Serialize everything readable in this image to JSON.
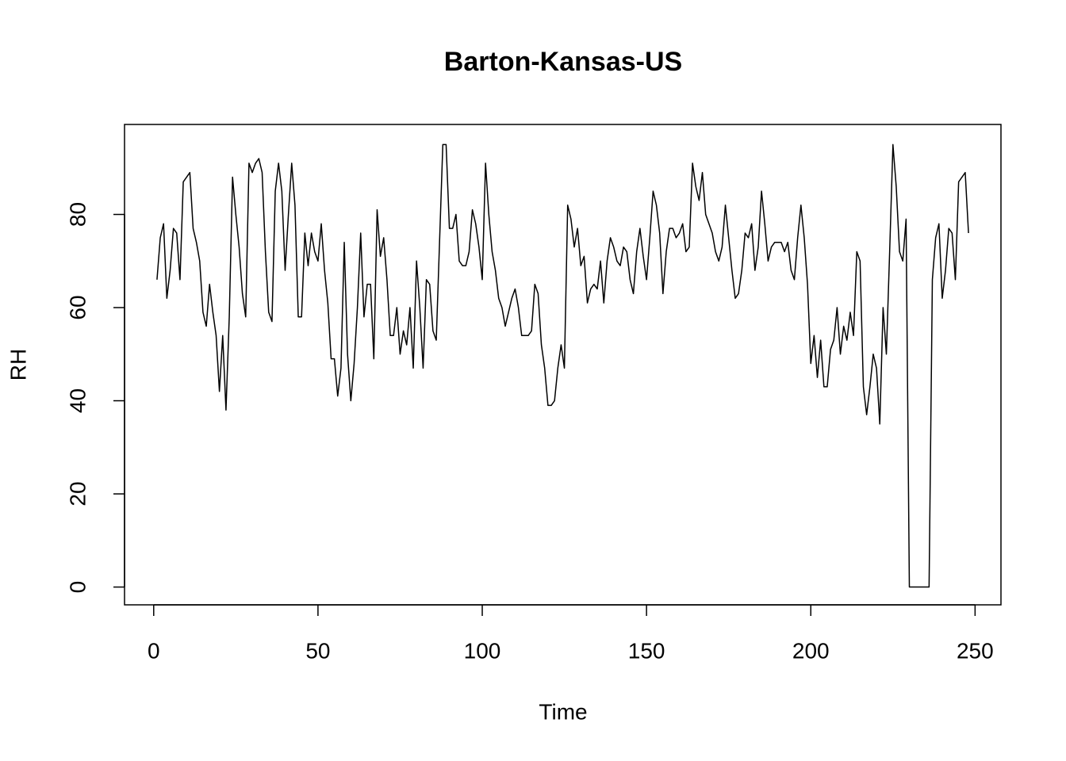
{
  "chart_data": {
    "type": "line",
    "title": "Barton-Kansas-US",
    "x_label": "Time",
    "y_label": "RH",
    "x": [
      1,
      2,
      3,
      4,
      5,
      6,
      7,
      8,
      9,
      10,
      11,
      12,
      13,
      14,
      15,
      16,
      17,
      18,
      19,
      20,
      21,
      22,
      23,
      24,
      25,
      26,
      27,
      28,
      29,
      30,
      31,
      32,
      33,
      34,
      35,
      36,
      37,
      38,
      39,
      40,
      41,
      42,
      43,
      44,
      45,
      46,
      47,
      48,
      49,
      50,
      51,
      52,
      53,
      54,
      55,
      56,
      57,
      58,
      59,
      60,
      61,
      62,
      63,
      64,
      65,
      66,
      67,
      68,
      69,
      70,
      71,
      72,
      73,
      74,
      75,
      76,
      77,
      78,
      79,
      80,
      81,
      82,
      83,
      84,
      85,
      86,
      87,
      88,
      89,
      90,
      91,
      92,
      93,
      94,
      95,
      96,
      97,
      98,
      99,
      100,
      101,
      102,
      103,
      104,
      105,
      106,
      107,
      108,
      109,
      110,
      111,
      112,
      113,
      114,
      115,
      116,
      117,
      118,
      119,
      120,
      121,
      122,
      123,
      124,
      125,
      126,
      127,
      128,
      129,
      130,
      131,
      132,
      133,
      134,
      135,
      136,
      137,
      138,
      139,
      140,
      141,
      142,
      143,
      144,
      145,
      146,
      147,
      148,
      149,
      150,
      151,
      152,
      153,
      154,
      155,
      156,
      157,
      158,
      159,
      160,
      161,
      162,
      163,
      164,
      165,
      166,
      167,
      168,
      169,
      170,
      171,
      172,
      173,
      174,
      175,
      176,
      177,
      178,
      179,
      180,
      181,
      182,
      183,
      184,
      185,
      186,
      187,
      188,
      189,
      190,
      191,
      192,
      193,
      194,
      195,
      196,
      197,
      198,
      199,
      200,
      201,
      202,
      203,
      204,
      205,
      206,
      207,
      208,
      209,
      210,
      211,
      212,
      213,
      214,
      215,
      216,
      217,
      218,
      219,
      220,
      221,
      222,
      223,
      224,
      225,
      226,
      227,
      228,
      229,
      230,
      231,
      232,
      233,
      234,
      235,
      236,
      237,
      238,
      239,
      240,
      241,
      242,
      243,
      244,
      245,
      246,
      247,
      248
    ],
    "series": [
      {
        "name": "RH",
        "color": "#000000",
        "values": [
          66,
          75,
          78,
          62,
          68,
          77,
          76,
          66,
          87,
          88,
          89,
          77,
          74,
          70,
          59,
          56,
          65,
          59,
          54,
          42,
          54,
          38,
          58,
          88,
          80,
          73,
          63,
          58,
          91,
          89,
          91,
          92,
          89,
          72,
          59,
          57,
          85,
          91,
          85,
          68,
          80,
          91,
          82,
          58,
          58,
          76,
          69,
          76,
          72,
          70,
          78,
          68,
          61,
          49,
          49,
          41,
          47,
          74,
          50,
          40,
          48,
          60,
          76,
          58,
          65,
          65,
          49,
          81,
          71,
          75,
          66,
          54,
          54,
          60,
          50,
          55,
          52,
          60,
          47,
          70,
          60,
          47,
          66,
          65,
          55,
          53,
          74,
          95,
          95,
          77,
          77,
          80,
          70,
          69,
          69,
          72,
          81,
          78,
          73,
          66,
          91,
          80,
          72,
          68,
          62,
          60,
          56,
          59,
          62,
          64,
          60,
          54,
          54,
          54,
          55,
          65,
          63,
          52,
          47,
          39,
          39,
          40,
          47,
          52,
          47,
          82,
          79,
          73,
          77,
          69,
          71,
          61,
          64,
          65,
          64,
          70,
          61,
          70,
          75,
          73,
          70,
          69,
          73,
          72,
          66,
          63,
          72,
          77,
          71,
          66,
          75,
          85,
          82,
          76,
          63,
          72,
          77,
          77,
          75,
          76,
          78,
          72,
          73,
          91,
          86,
          83,
          89,
          80,
          78,
          76,
          72,
          70,
          73,
          82,
          75,
          68,
          62,
          63,
          68,
          76,
          75,
          78,
          68,
          73,
          85,
          78,
          70,
          73,
          74,
          74,
          74,
          72,
          74,
          68,
          66,
          75,
          82,
          75,
          65,
          48,
          54,
          45,
          53,
          43,
          43,
          51,
          53,
          60,
          50,
          56,
          53,
          59,
          54,
          72,
          70,
          43,
          37,
          43,
          50,
          47,
          35,
          60,
          50,
          72,
          95,
          86,
          72,
          70,
          79,
          0,
          0,
          0,
          0,
          0,
          0,
          0,
          66,
          75,
          78,
          62,
          68,
          77,
          76,
          66,
          87,
          88,
          89,
          76
        ]
      }
    ],
    "xlim": [
      -8.88,
      257.88
    ],
    "ylim": [
      -3.82,
      99.32
    ],
    "xticks": [
      0,
      50,
      100,
      150,
      200,
      250
    ],
    "yticks": [
      0,
      20,
      40,
      60,
      80
    ]
  }
}
